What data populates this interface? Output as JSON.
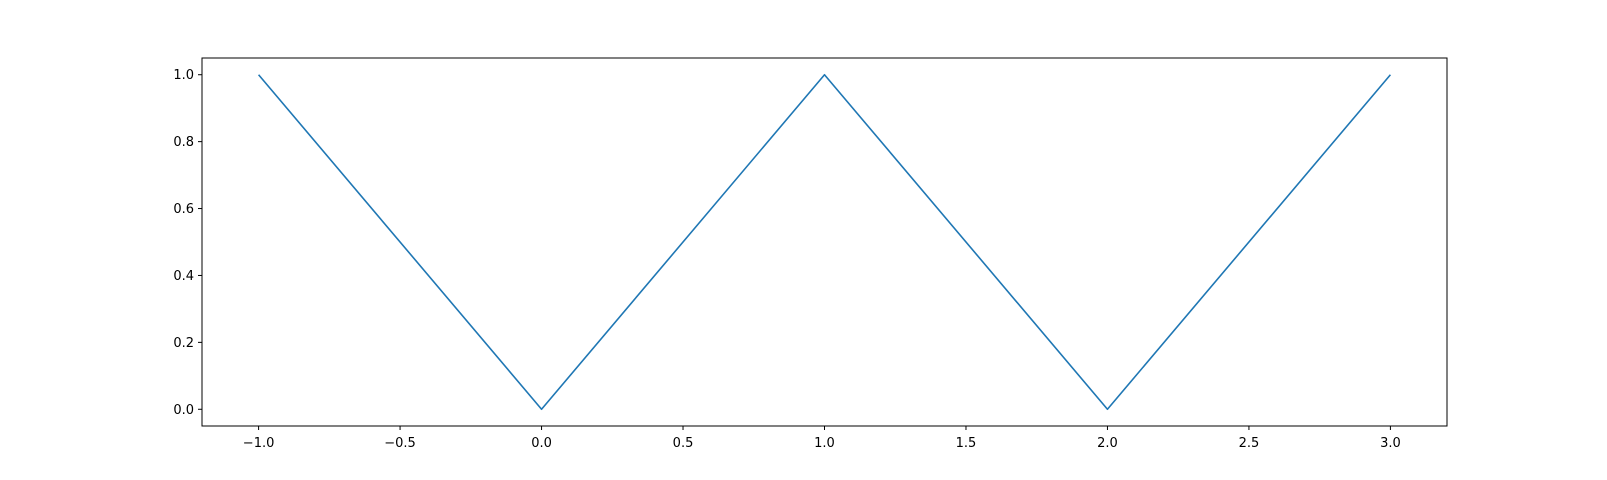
{
  "chart_data": {
    "type": "line",
    "title": "",
    "xlabel": "",
    "ylabel": "",
    "xlim": [
      -1.2,
      3.2
    ],
    "ylim": [
      -0.05,
      1.05
    ],
    "x_ticks": [
      -1.0,
      -0.5,
      0.0,
      0.5,
      1.0,
      1.5,
      2.0,
      2.5,
      3.0
    ],
    "x_tick_labels": [
      "−1.0",
      "−0.5",
      "0.0",
      "0.5",
      "1.0",
      "1.5",
      "2.0",
      "2.5",
      "3.0"
    ],
    "y_ticks": [
      0.0,
      0.2,
      0.4,
      0.6,
      0.8,
      1.0
    ],
    "y_tick_labels": [
      "0.0",
      "0.2",
      "0.4",
      "0.6",
      "0.8",
      "1.0"
    ],
    "grid": false,
    "legend": "none",
    "series": [
      {
        "color": "#1f77b4",
        "x": [
          -1.0,
          0.0,
          1.0,
          2.0,
          3.0
        ],
        "y": [
          1.0,
          0.0,
          1.0,
          0.0,
          1.0
        ]
      }
    ]
  }
}
